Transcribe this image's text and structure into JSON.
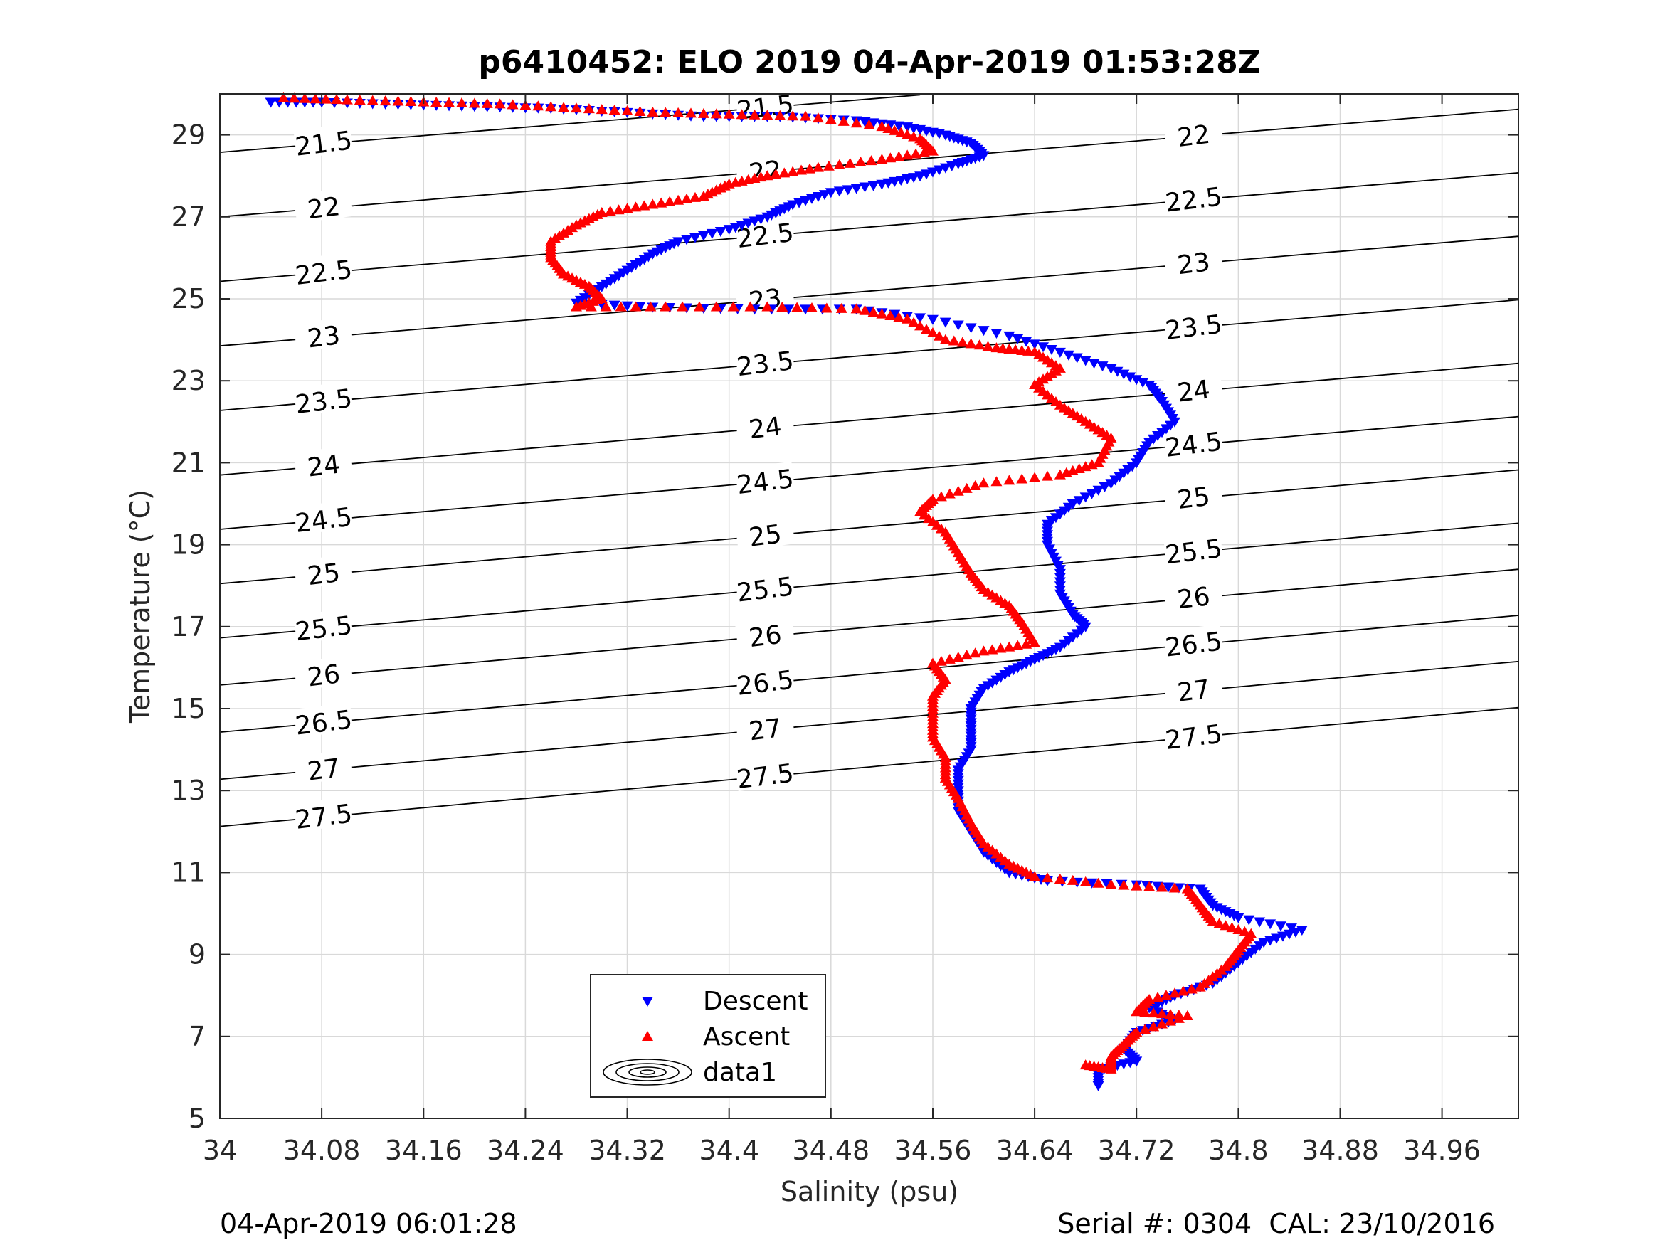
{
  "chart_data": {
    "type": "scatter",
    "title": "p6410452: ELO 2019 04-Apr-2019 01:53:28Z",
    "xlabel": "Salinity (psu)",
    "ylabel": "Temperature (°C)",
    "xlim": [
      34.0,
      35.02
    ],
    "ylim": [
      5,
      30
    ],
    "xticks": [
      "34",
      "34.08",
      "34.16",
      "34.24",
      "34.32",
      "34.4",
      "34.48",
      "34.56",
      "34.64",
      "34.72",
      "34.8",
      "34.88",
      "34.96"
    ],
    "yticks": [
      "5",
      "7",
      "9",
      "11",
      "13",
      "15",
      "17",
      "19",
      "21",
      "23",
      "25",
      "27",
      "29"
    ],
    "grid": true,
    "legend_position": "bottom-center",
    "series": [
      {
        "name": "Descent",
        "marker": "triangle-down",
        "color": "#0000ff",
        "points": [
          [
            34.04,
            29.8
          ],
          [
            34.08,
            29.8
          ],
          [
            34.14,
            29.75
          ],
          [
            34.2,
            29.7
          ],
          [
            34.26,
            29.65
          ],
          [
            34.32,
            29.55
          ],
          [
            34.38,
            29.45
          ],
          [
            34.44,
            29.45
          ],
          [
            34.5,
            29.35
          ],
          [
            34.54,
            29.2
          ],
          [
            34.57,
            29.0
          ],
          [
            34.59,
            28.8
          ],
          [
            34.6,
            28.5
          ],
          [
            34.58,
            28.3
          ],
          [
            34.55,
            28.0
          ],
          [
            34.52,
            27.8
          ],
          [
            34.48,
            27.6
          ],
          [
            34.45,
            27.3
          ],
          [
            34.43,
            27.0
          ],
          [
            34.4,
            26.7
          ],
          [
            34.36,
            26.4
          ],
          [
            34.34,
            26.1
          ],
          [
            34.32,
            25.7
          ],
          [
            34.3,
            25.3
          ],
          [
            34.28,
            24.9
          ],
          [
            34.34,
            24.8
          ],
          [
            34.42,
            24.75
          ],
          [
            34.5,
            24.75
          ],
          [
            34.56,
            24.5
          ],
          [
            34.62,
            24.1
          ],
          [
            34.66,
            23.7
          ],
          [
            34.7,
            23.3
          ],
          [
            34.73,
            22.9
          ],
          [
            34.74,
            22.5
          ],
          [
            34.75,
            22.0
          ],
          [
            34.73,
            21.5
          ],
          [
            34.72,
            21.0
          ],
          [
            34.7,
            20.5
          ],
          [
            34.67,
            20.0
          ],
          [
            34.65,
            19.5
          ],
          [
            34.65,
            19.0
          ],
          [
            34.66,
            18.4
          ],
          [
            34.66,
            17.8
          ],
          [
            34.67,
            17.3
          ],
          [
            34.68,
            17.0
          ],
          [
            34.66,
            16.5
          ],
          [
            34.64,
            16.2
          ],
          [
            34.62,
            15.9
          ],
          [
            34.6,
            15.5
          ],
          [
            34.59,
            15.0
          ],
          [
            34.59,
            14.5
          ],
          [
            34.59,
            14.0
          ],
          [
            34.58,
            13.5
          ],
          [
            34.58,
            13.0
          ],
          [
            34.58,
            12.5
          ],
          [
            34.59,
            12.0
          ],
          [
            34.6,
            11.5
          ],
          [
            34.62,
            11.0
          ],
          [
            34.65,
            10.8
          ],
          [
            34.72,
            10.7
          ],
          [
            34.77,
            10.6
          ],
          [
            34.78,
            10.2
          ],
          [
            34.8,
            9.9
          ],
          [
            34.85,
            9.6
          ],
          [
            34.82,
            9.3
          ],
          [
            34.8,
            8.8
          ],
          [
            34.78,
            8.3
          ],
          [
            34.75,
            8.0
          ],
          [
            34.73,
            7.7
          ],
          [
            34.75,
            7.4
          ],
          [
            34.72,
            7.1
          ],
          [
            34.71,
            6.7
          ],
          [
            34.72,
            6.4
          ],
          [
            34.69,
            6.2
          ],
          [
            34.69,
            5.8
          ]
        ]
      },
      {
        "name": "Ascent",
        "marker": "triangle-up",
        "color": "#ff0000",
        "points": [
          [
            34.05,
            29.9
          ],
          [
            34.1,
            29.85
          ],
          [
            34.16,
            29.8
          ],
          [
            34.22,
            29.75
          ],
          [
            34.28,
            29.65
          ],
          [
            34.34,
            29.55
          ],
          [
            34.4,
            29.5
          ],
          [
            34.46,
            29.45
          ],
          [
            34.52,
            29.2
          ],
          [
            34.55,
            28.9
          ],
          [
            34.56,
            28.6
          ],
          [
            34.52,
            28.4
          ],
          [
            34.47,
            28.2
          ],
          [
            34.43,
            28.0
          ],
          [
            34.4,
            27.8
          ],
          [
            34.38,
            27.5
          ],
          [
            34.34,
            27.3
          ],
          [
            34.3,
            27.1
          ],
          [
            34.28,
            26.8
          ],
          [
            34.26,
            26.4
          ],
          [
            34.26,
            26.0
          ],
          [
            34.27,
            25.6
          ],
          [
            34.29,
            25.3
          ],
          [
            34.3,
            25.0
          ],
          [
            34.28,
            24.8
          ],
          [
            34.35,
            24.8
          ],
          [
            34.43,
            24.8
          ],
          [
            34.5,
            24.75
          ],
          [
            34.54,
            24.5
          ],
          [
            34.57,
            24.0
          ],
          [
            34.61,
            23.8
          ],
          [
            34.64,
            23.7
          ],
          [
            34.66,
            23.3
          ],
          [
            34.64,
            22.9
          ],
          [
            34.66,
            22.4
          ],
          [
            34.68,
            22.0
          ],
          [
            34.7,
            21.6
          ],
          [
            34.69,
            21.0
          ],
          [
            34.66,
            20.7
          ],
          [
            34.6,
            20.5
          ],
          [
            34.56,
            20.1
          ],
          [
            34.55,
            19.8
          ],
          [
            34.57,
            19.3
          ],
          [
            34.58,
            18.8
          ],
          [
            34.59,
            18.3
          ],
          [
            34.6,
            17.9
          ],
          [
            34.62,
            17.5
          ],
          [
            34.63,
            17.1
          ],
          [
            34.64,
            16.6
          ],
          [
            34.6,
            16.4
          ],
          [
            34.56,
            16.1
          ],
          [
            34.57,
            15.7
          ],
          [
            34.56,
            15.3
          ],
          [
            34.56,
            14.8
          ],
          [
            34.56,
            14.3
          ],
          [
            34.57,
            13.8
          ],
          [
            34.57,
            13.3
          ],
          [
            34.58,
            12.8
          ],
          [
            34.59,
            12.2
          ],
          [
            34.6,
            11.7
          ],
          [
            34.62,
            11.2
          ],
          [
            34.64,
            10.9
          ],
          [
            34.7,
            10.7
          ],
          [
            34.76,
            10.6
          ],
          [
            34.77,
            10.2
          ],
          [
            34.78,
            9.8
          ],
          [
            34.81,
            9.5
          ],
          [
            34.8,
            9.1
          ],
          [
            34.79,
            8.7
          ],
          [
            34.77,
            8.2
          ],
          [
            34.73,
            7.9
          ],
          [
            34.72,
            7.6
          ],
          [
            34.76,
            7.5
          ],
          [
            34.72,
            7.1
          ],
          [
            34.71,
            6.8
          ],
          [
            34.7,
            6.5
          ],
          [
            34.7,
            6.2
          ],
          [
            34.68,
            6.3
          ]
        ]
      },
      {
        "name": "data1",
        "marker": "contour",
        "color": "#000000",
        "isopycnals": [
          "21.5",
          "22",
          "22.5",
          "23",
          "23.5",
          "24",
          "24.5",
          "25",
          "25.5",
          "26",
          "26.5",
          "27",
          "27.5"
        ]
      }
    ]
  },
  "footer": {
    "left": "04-Apr-2019 06:01:28",
    "right": "Serial #: 0304  CAL: 23/10/2016"
  }
}
